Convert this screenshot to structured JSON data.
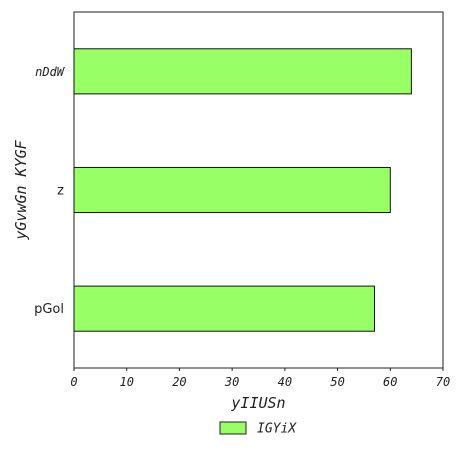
{
  "chart_data": {
    "type": "bar",
    "orientation": "horizontal",
    "categories": [
      "pGol",
      "z",
      "nDdW"
    ],
    "category_styles": [
      "plain",
      "plain",
      "italic"
    ],
    "series": [
      {
        "name": "IGYiX",
        "values": [
          57,
          60,
          64
        ],
        "color": "#99ff66"
      }
    ],
    "xlabel": "yIIUSn",
    "ylabel": "yGvwGn KYGF",
    "xlim": [
      0,
      70
    ],
    "x_ticks": [
      0,
      10,
      20,
      30,
      40,
      50,
      60,
      70
    ],
    "grid": false,
    "legend_position": "bottom-center"
  }
}
